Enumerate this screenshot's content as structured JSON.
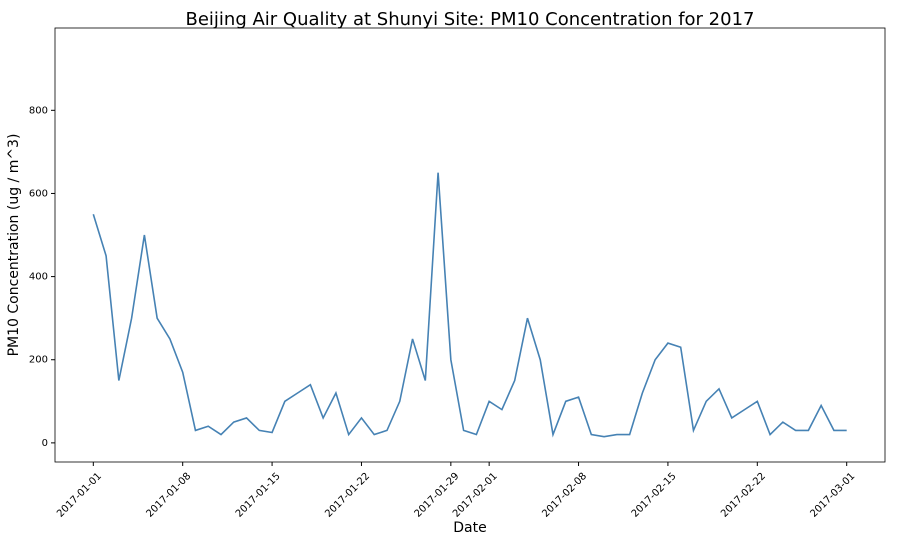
{
  "chart_data": {
    "type": "line",
    "title": "Beijing Air Quality at Shunyi Site: PM10 Concentration for 2017",
    "x_label": "Date",
    "y_label": "PM10 Concentration (ug / m^3)",
    "x": [
      "2017-01-01",
      "2017-01-02",
      "2017-01-03",
      "2017-01-04",
      "2017-01-05",
      "2017-01-06",
      "2017-01-07",
      "2017-01-08",
      "2017-01-09",
      "2017-01-10",
      "2017-01-11",
      "2017-01-12",
      "2017-01-13",
      "2017-01-14",
      "2017-01-15",
      "2017-01-16",
      "2017-01-17",
      "2017-01-18",
      "2017-01-19",
      "2017-01-20",
      "2017-01-21",
      "2017-01-22",
      "2017-01-23",
      "2017-01-24",
      "2017-01-25",
      "2017-01-26",
      "2017-01-27",
      "2017-01-28",
      "2017-01-29",
      "2017-01-30",
      "2017-01-31",
      "2017-02-01",
      "2017-02-02",
      "2017-02-03",
      "2017-02-04",
      "2017-02-05",
      "2017-02-06",
      "2017-02-07",
      "2017-02-08",
      "2017-02-09",
      "2017-02-10",
      "2017-02-11",
      "2017-02-12",
      "2017-02-13",
      "2017-02-14",
      "2017-02-15",
      "2017-02-16",
      "2017-02-17",
      "2017-02-18",
      "2017-02-19",
      "2017-02-20",
      "2017-02-21",
      "2017-02-22",
      "2017-02-23",
      "2017-02-24",
      "2017-02-25",
      "2017-02-26",
      "2017-02-27",
      "2017-02-28",
      "2017-03-01"
    ],
    "series": [
      {
        "name": "PM10",
        "color": "#4682b4",
        "values": [
          550,
          450,
          150,
          300,
          500,
          300,
          250,
          170,
          30,
          40,
          20,
          50,
          60,
          30,
          25,
          100,
          120,
          140,
          60,
          120,
          20,
          60,
          20,
          30,
          100,
          250,
          150,
          650,
          200,
          30,
          20,
          100,
          80,
          150,
          300,
          200,
          20,
          100,
          110,
          20,
          15,
          20,
          20,
          120,
          200,
          240,
          230,
          30,
          100,
          130,
          60,
          80,
          100,
          20,
          50,
          30,
          30,
          90,
          30,
          30
        ]
      }
    ],
    "xlim": [
      "2016-12-29",
      "2017-03-04"
    ],
    "xticks": [
      "2017-01-01",
      "2017-01-08",
      "2017-01-15",
      "2017-01-22",
      "2017-01-29",
      "2017-02-01",
      "2017-02-08",
      "2017-02-15",
      "2017-02-22",
      "2017-03-01"
    ],
    "ylim": [
      -46,
      998
    ],
    "yticks": [
      0,
      200,
      400,
      600,
      800
    ]
  }
}
